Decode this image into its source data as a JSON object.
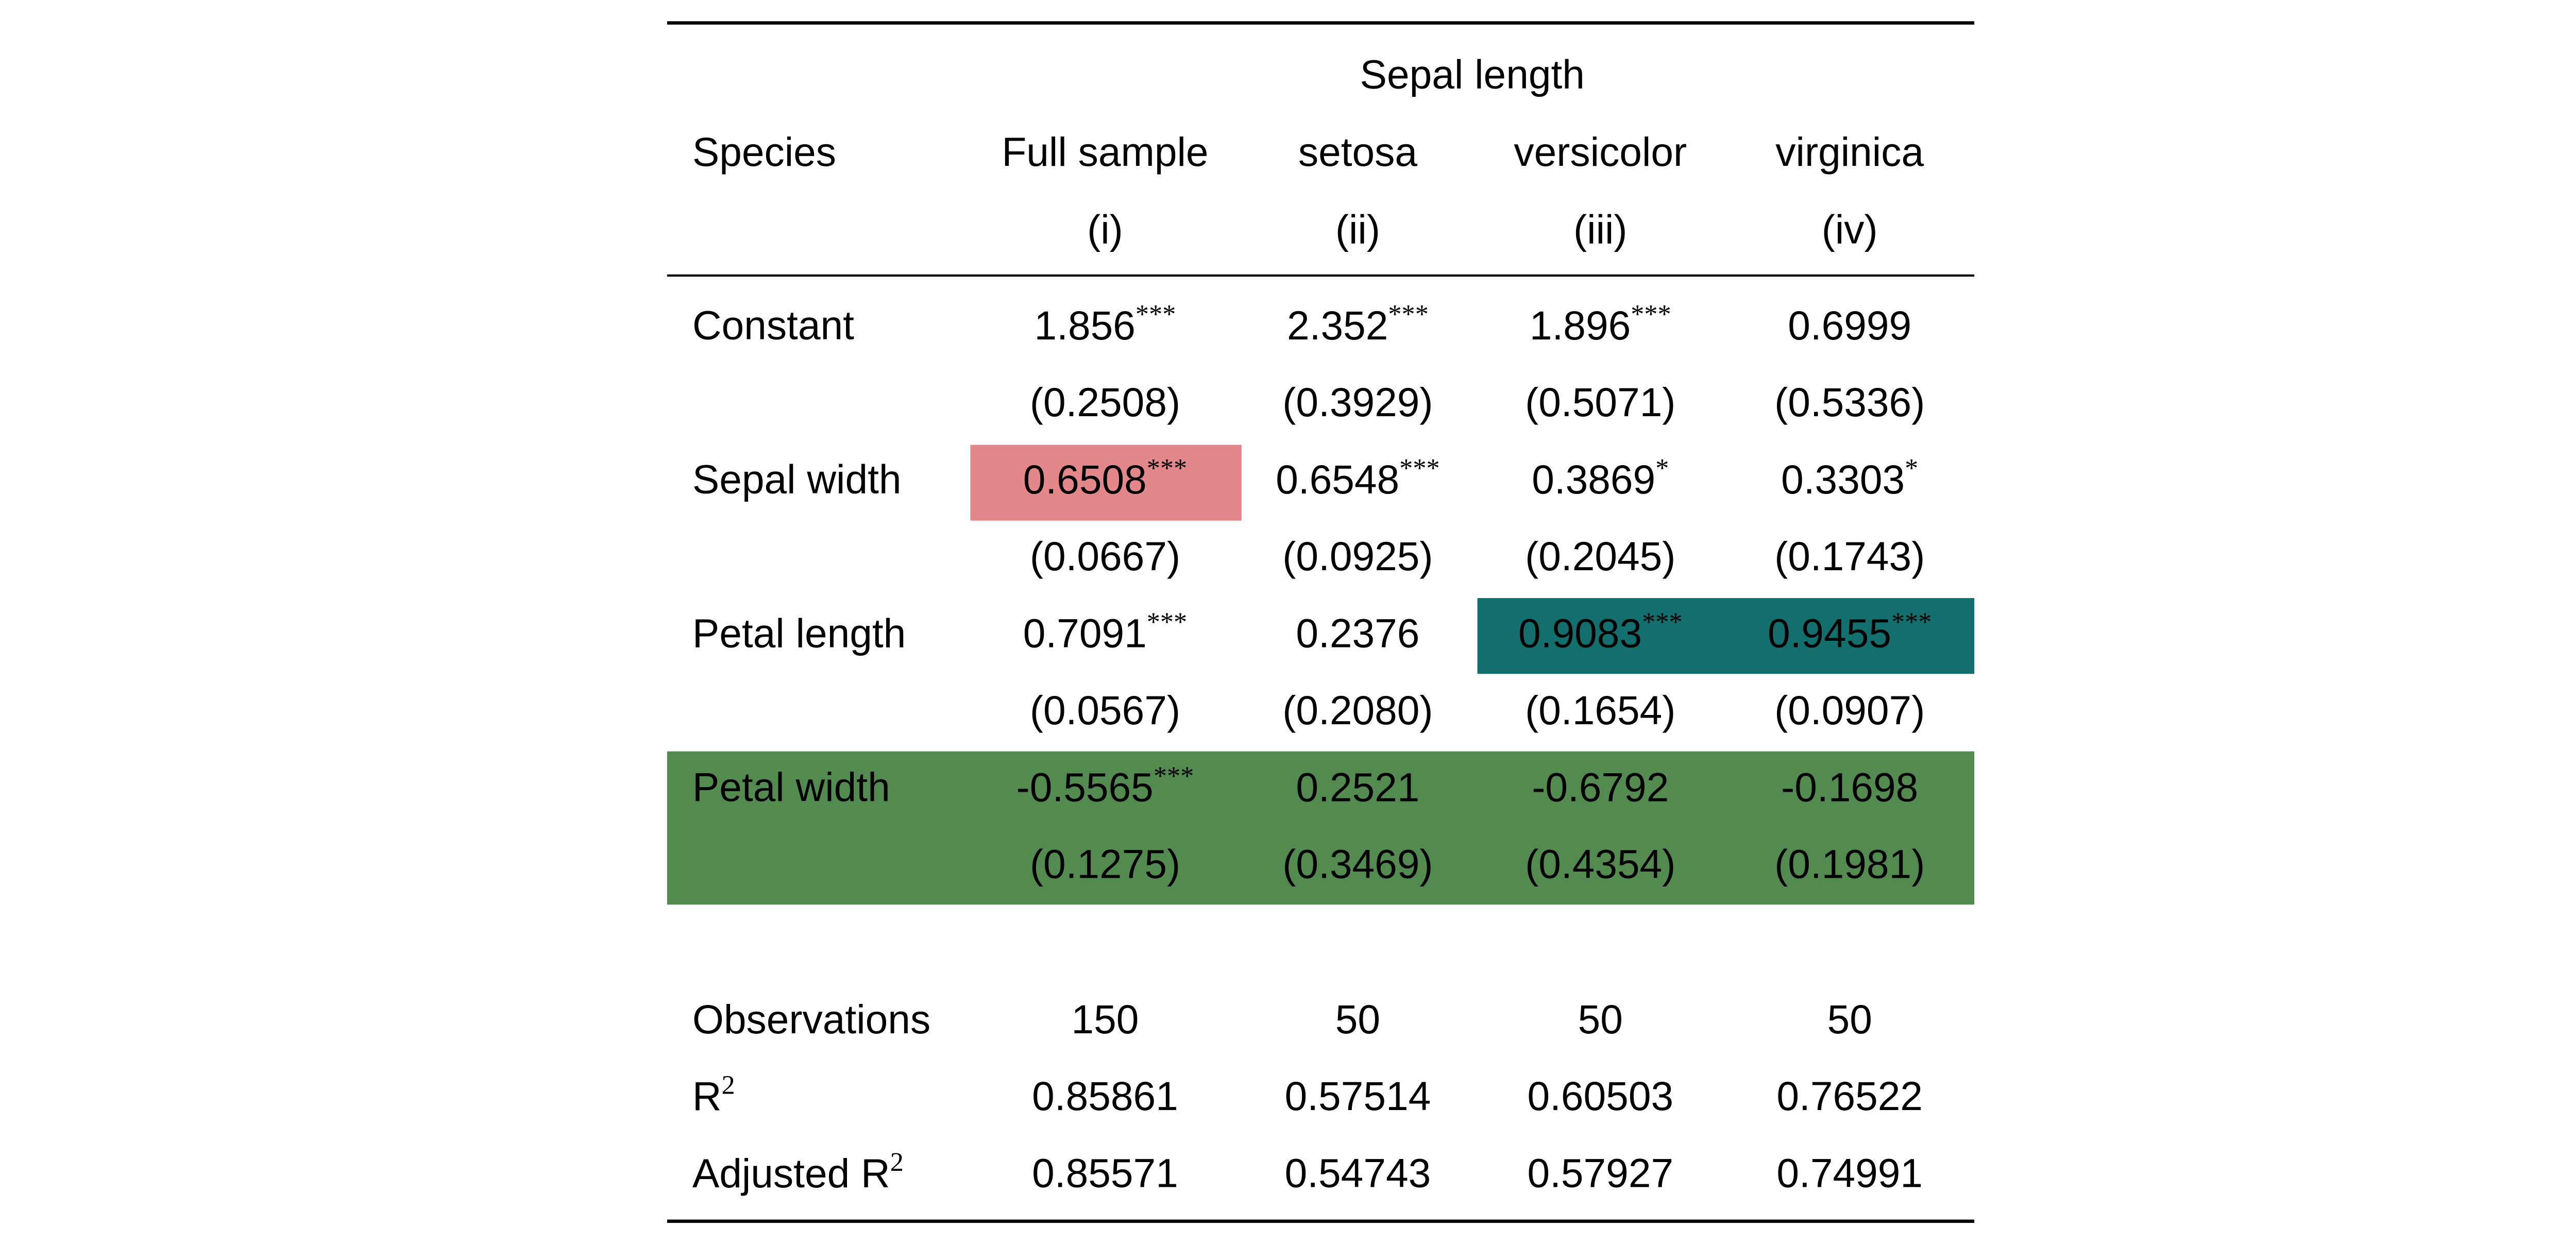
{
  "header": {
    "group": "Sepal length",
    "stub": "Species",
    "columns": [
      "Full sample",
      "setosa",
      "versicolor",
      "virginica"
    ],
    "numbers": [
      "(i)",
      "(ii)",
      "(iii)",
      "(iv)"
    ]
  },
  "rows": [
    {
      "label": "Constant",
      "coef": [
        {
          "value": "1.856",
          "stars": "***"
        },
        {
          "value": "2.352",
          "stars": "***"
        },
        {
          "value": "1.896",
          "stars": "***"
        },
        {
          "value": "0.6999"
        }
      ],
      "se": [
        "(0.2508)",
        "(0.3929)",
        "(0.5071)",
        "(0.5336)"
      ]
    },
    {
      "label": "Sepal width",
      "coef": [
        {
          "value": "0.6508",
          "stars": "***"
        },
        {
          "value": "0.6548",
          "stars": "***"
        },
        {
          "value": "0.3869",
          "stars": "*"
        },
        {
          "value": "0.3303",
          "stars": "*"
        }
      ],
      "se": [
        "(0.0667)",
        "(0.0925)",
        "(0.2045)",
        "(0.1743)"
      ]
    },
    {
      "label": "Petal length",
      "coef": [
        {
          "value": "0.7091",
          "stars": "***"
        },
        {
          "value": "0.2376"
        },
        {
          "value": "0.9083",
          "stars": "***"
        },
        {
          "value": "0.9455",
          "stars": "***"
        }
      ],
      "se": [
        "(0.0567)",
        "(0.2080)",
        "(0.1654)",
        "(0.0907)"
      ]
    },
    {
      "label": "Petal width",
      "coef": [
        {
          "value": "-0.5565",
          "stars": "***"
        },
        {
          "value": "0.2521"
        },
        {
          "value": "-0.6792"
        },
        {
          "value": "-0.1698"
        }
      ],
      "se": [
        "(0.1275)",
        "(0.3469)",
        "(0.4354)",
        "(0.1981)"
      ]
    }
  ],
  "stats": [
    {
      "label": "Observations",
      "values": [
        "150",
        "50",
        "50",
        "50"
      ]
    },
    {
      "label": "R",
      "sup": "2",
      "values": [
        "0.85861",
        "0.57514",
        "0.60503",
        "0.76522"
      ]
    },
    {
      "label": "Adjusted R",
      "sup": "2",
      "values": [
        "0.85571",
        "0.54743",
        "0.57927",
        "0.74991"
      ]
    }
  ]
}
